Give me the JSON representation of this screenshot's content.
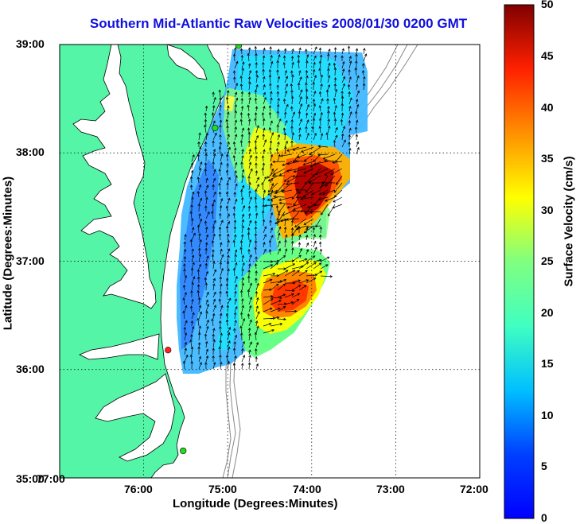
{
  "title": "Southern Mid-Atlantic Raw Velocities 2008/01/30 0200 GMT",
  "x_axis": {
    "label": "Longitude (Degrees:Minutes)",
    "ticks": [
      "77:00",
      "76:00",
      "75:00",
      "74:00",
      "73:00",
      "72:00"
    ]
  },
  "y_axis": {
    "label": "Latitude (Degrees:Minutes)",
    "ticks": [
      "39:00",
      "38:00",
      "37:00",
      "36:00",
      "35:00"
    ]
  },
  "colorbar": {
    "label": "Surface Velocity (cm/s)",
    "ticks": [
      "50",
      "45",
      "40",
      "35",
      "30",
      "25",
      "20",
      "15",
      "10",
      "5",
      "0"
    ],
    "min": 0,
    "max": 50,
    "colormap": "jet"
  },
  "map_extent": {
    "lon_west": -77,
    "lon_east": -72,
    "lat_south": 35,
    "lat_north": 39
  },
  "colors": {
    "land": "#55f5a8",
    "water": "#ffffff",
    "coast": "#000000",
    "bathymetry": "#888888",
    "title": "#1010dd",
    "station_active": "#22dd22",
    "station_alert": "#ff2222"
  },
  "stations": [
    {
      "lon": -74.87,
      "lat": 38.99,
      "status": "active"
    },
    {
      "lon": -75.15,
      "lat": 38.23,
      "status": "active"
    },
    {
      "lon": -75.71,
      "lat": 36.18,
      "status": "alert"
    },
    {
      "lon": -75.53,
      "lat": 35.25,
      "status": "active"
    }
  ],
  "velocity_hotspots": [
    {
      "lon": -74.05,
      "lat": 37.7,
      "speed": 47
    },
    {
      "lon": -74.25,
      "lat": 36.7,
      "speed": 37
    },
    {
      "lon": -74.55,
      "lat": 37.1,
      "speed": 26
    },
    {
      "lon": -74.6,
      "lat": 38.4,
      "speed": 22
    }
  ]
}
